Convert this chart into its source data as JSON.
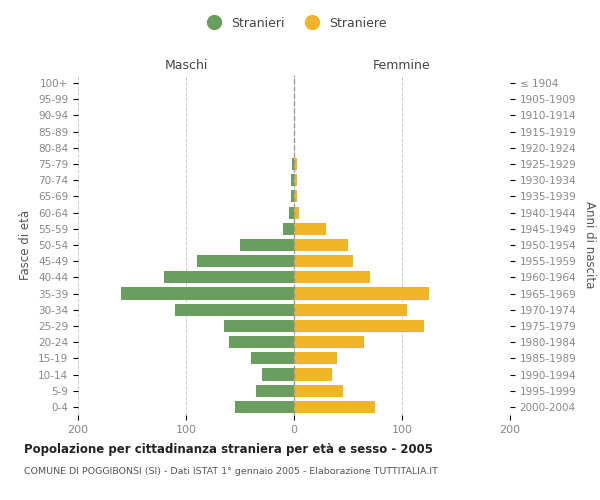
{
  "age_groups": [
    "0-4",
    "5-9",
    "10-14",
    "15-19",
    "20-24",
    "25-29",
    "30-34",
    "35-39",
    "40-44",
    "45-49",
    "50-54",
    "55-59",
    "60-64",
    "65-69",
    "70-74",
    "75-79",
    "80-84",
    "85-89",
    "90-94",
    "95-99",
    "100+"
  ],
  "birth_years": [
    "2000-2004",
    "1995-1999",
    "1990-1994",
    "1985-1989",
    "1980-1984",
    "1975-1979",
    "1970-1974",
    "1965-1969",
    "1960-1964",
    "1955-1959",
    "1950-1954",
    "1945-1949",
    "1940-1944",
    "1935-1939",
    "1930-1934",
    "1925-1929",
    "1920-1924",
    "1915-1919",
    "1910-1914",
    "1905-1909",
    "≤ 1904"
  ],
  "males": [
    55,
    35,
    30,
    40,
    60,
    65,
    110,
    160,
    120,
    90,
    50,
    10,
    5,
    3,
    3,
    2,
    0,
    0,
    0,
    0,
    0
  ],
  "females": [
    75,
    45,
    35,
    40,
    65,
    120,
    105,
    125,
    70,
    55,
    50,
    30,
    5,
    3,
    3,
    3,
    0,
    0,
    0,
    0,
    0
  ],
  "male_color": "#6a9e5e",
  "female_color": "#f0b429",
  "title": "Popolazione per cittadinanza straniera per età e sesso - 2005",
  "subtitle": "COMUNE DI POGGIBONSI (SI) - Dati ISTAT 1° gennaio 2005 - Elaborazione TUTTITALIA.IT",
  "xlabel_left": "Maschi",
  "xlabel_right": "Femmine",
  "ylabel_left": "Fasce di età",
  "ylabel_right": "Anni di nascita",
  "legend_male": "Stranieri",
  "legend_female": "Straniere",
  "xlim": 200,
  "background_color": "#ffffff",
  "grid_color": "#cccccc",
  "axis_label_color": "#555555",
  "tick_label_color": "#888888",
  "bar_height": 0.75
}
